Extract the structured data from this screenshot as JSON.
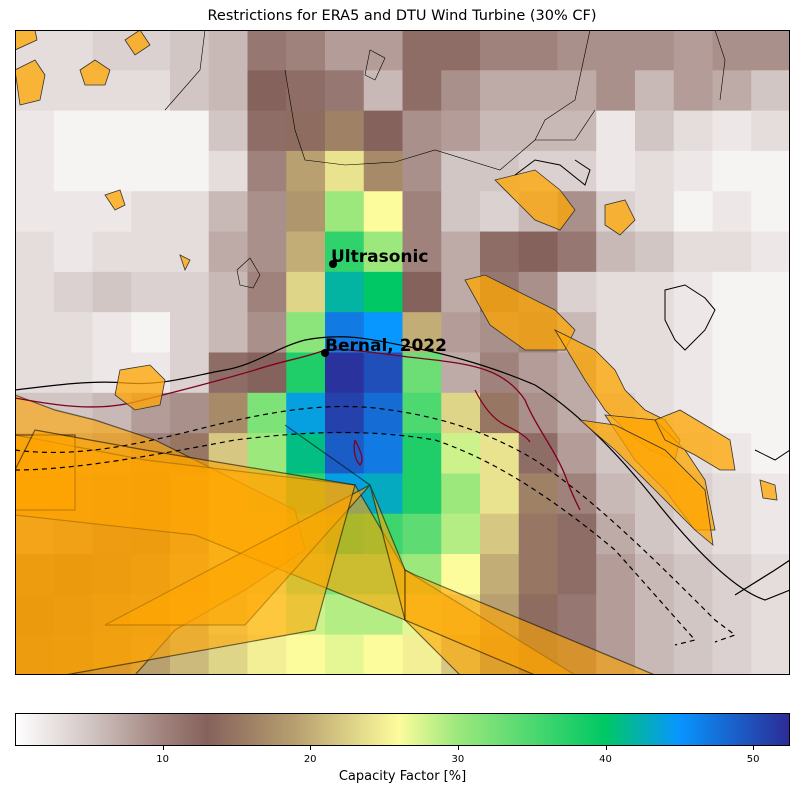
{
  "title": "Restrictions for ERA5 and DTU Wind Turbine (30% CF)",
  "colorbar": {
    "label": "Capacity Factor [%]",
    "min": 0,
    "max": 52.5,
    "ticks": [
      10,
      20,
      30,
      40,
      50
    ],
    "stops": [
      {
        "v": 0,
        "c": "#ffffff"
      },
      {
        "v": 5,
        "c": "#d2c6c4"
      },
      {
        "v": 10,
        "c": "#a0827c"
      },
      {
        "v": 13,
        "c": "#86625c"
      },
      {
        "v": 19,
        "c": "#b8a070"
      },
      {
        "v": 26,
        "c": "#fdfc9c"
      },
      {
        "v": 30,
        "c": "#9ce87c"
      },
      {
        "v": 40,
        "c": "#00c864"
      },
      {
        "v": 45,
        "c": "#0896ff"
      },
      {
        "v": 52.5,
        "c": "#2c2c96"
      }
    ]
  },
  "colors": {
    "restriction_fill": "#ffa500",
    "protected_area_edge": "#800020",
    "coastline": "#000000"
  },
  "markers": [
    {
      "name": "Ultrasonic"
    },
    {
      "name": "Bernal, 2022"
    }
  ],
  "grid": {
    "rows": 16,
    "cols": 20,
    "values": [
      [
        3,
        3,
        4,
        4,
        5,
        6,
        11,
        10,
        8,
        8,
        12,
        12,
        10,
        10,
        9,
        9,
        9,
        8,
        9,
        9
      ],
      [
        3,
        3,
        3,
        3,
        5,
        6,
        13,
        12,
        11,
        6,
        12,
        9,
        7,
        7,
        7,
        9,
        6,
        8,
        7,
        5
      ],
      [
        2,
        1,
        1,
        1,
        1,
        5,
        12,
        14,
        16,
        13,
        9,
        8,
        6,
        6,
        6,
        2,
        5,
        3,
        2,
        3
      ],
      [
        2,
        1,
        1,
        1,
        1,
        3,
        10,
        19,
        24,
        17,
        9,
        5,
        5,
        4,
        4,
        2,
        3,
        2,
        1,
        1
      ],
      [
        2,
        2,
        2,
        3,
        3,
        6,
        9,
        18,
        30,
        26,
        10,
        5,
        4,
        6,
        9,
        4,
        3,
        1,
        2,
        1
      ],
      [
        3,
        2,
        3,
        3,
        3,
        7,
        9,
        20,
        37,
        30,
        10,
        7,
        12,
        13,
        11,
        6,
        5,
        3,
        3,
        2
      ],
      [
        3,
        4,
        5,
        4,
        4,
        6,
        10,
        23,
        42,
        40,
        13,
        7,
        11,
        9,
        4,
        3,
        3,
        2,
        1,
        1
      ],
      [
        3,
        3,
        2,
        1,
        4,
        6,
        9,
        31,
        47,
        45,
        20,
        8,
        9,
        10,
        6,
        3,
        3,
        2,
        1,
        1
      ],
      [
        3,
        3,
        2,
        2,
        4,
        12,
        13,
        38,
        52,
        50,
        33,
        7,
        10,
        8,
        7,
        3,
        3,
        2,
        1,
        1
      ],
      [
        5,
        5,
        6,
        8,
        9,
        17,
        32,
        44,
        51,
        48,
        35,
        23,
        15,
        9,
        7,
        4,
        3,
        2,
        1,
        1
      ],
      [
        8,
        7,
        8,
        10,
        15,
        22,
        30,
        41,
        49,
        47,
        38,
        28,
        24,
        12,
        8,
        5,
        4,
        3,
        2,
        1
      ],
      [
        10,
        9,
        10,
        12,
        18,
        24,
        29,
        37,
        44,
        43,
        38,
        30,
        24,
        16,
        10,
        6,
        5,
        4,
        3,
        2
      ],
      [
        8,
        9,
        11,
        14,
        19,
        24,
        28,
        33,
        37,
        36,
        34,
        29,
        22,
        15,
        12,
        7,
        5,
        4,
        3,
        2
      ],
      [
        12,
        13,
        14,
        16,
        20,
        24,
        27,
        30,
        32,
        32,
        30,
        26,
        20,
        15,
        12,
        8,
        6,
        5,
        4,
        3
      ],
      [
        13,
        14,
        16,
        18,
        21,
        24,
        26,
        28,
        29,
        29,
        27,
        24,
        19,
        14,
        11,
        8,
        6,
        5,
        4,
        3
      ],
      [
        14,
        15,
        17,
        19,
        21,
        23,
        25,
        26,
        27,
        26,
        25,
        22,
        18,
        14,
        11,
        8,
        6,
        5,
        4,
        3
      ]
    ]
  }
}
